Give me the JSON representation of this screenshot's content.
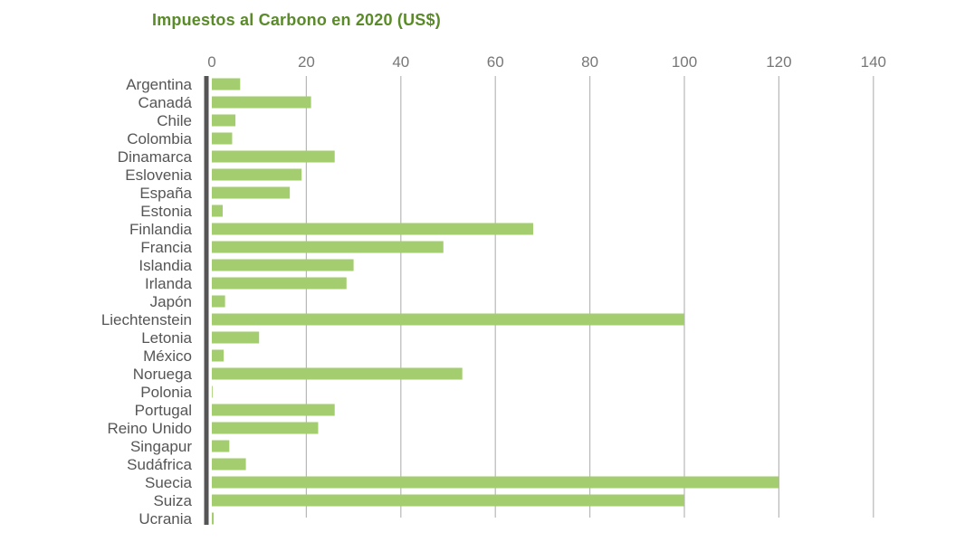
{
  "chart_data": {
    "type": "bar",
    "orientation": "horizontal",
    "title": "Impuestos al Carbono en 2020 (US$)",
    "xlabel": "",
    "ylabel": "",
    "xlim": [
      0,
      140
    ],
    "x_ticks": [
      0,
      20,
      40,
      60,
      80,
      100,
      120,
      140
    ],
    "x_axis_position": "top",
    "grid": "vertical",
    "legend": "none",
    "bar_color": "#a3cd6e",
    "title_color": "#5a8a2a",
    "categories": [
      "Argentina",
      "Canadá",
      "Chile",
      "Colombia",
      "Dinamarca",
      "Eslovenia",
      "España",
      "Estonia",
      "Finlandia",
      "Francia",
      "Islandia",
      "Irlanda",
      "Japón",
      "Liechtenstein",
      "Letonia",
      "México",
      "Noruega",
      "Polonia",
      "Portugal",
      "Reino Unido",
      "Singapur",
      "Sudáfrica",
      "Suecia",
      "Suiza",
      "Ucrania"
    ],
    "values": [
      6,
      21,
      5,
      4.3,
      26,
      19,
      16.5,
      2.3,
      68,
      49,
      30,
      28.5,
      2.8,
      100,
      10,
      2.5,
      53,
      0.1,
      26,
      22.5,
      3.7,
      7.2,
      120,
      100,
      0.4
    ]
  }
}
